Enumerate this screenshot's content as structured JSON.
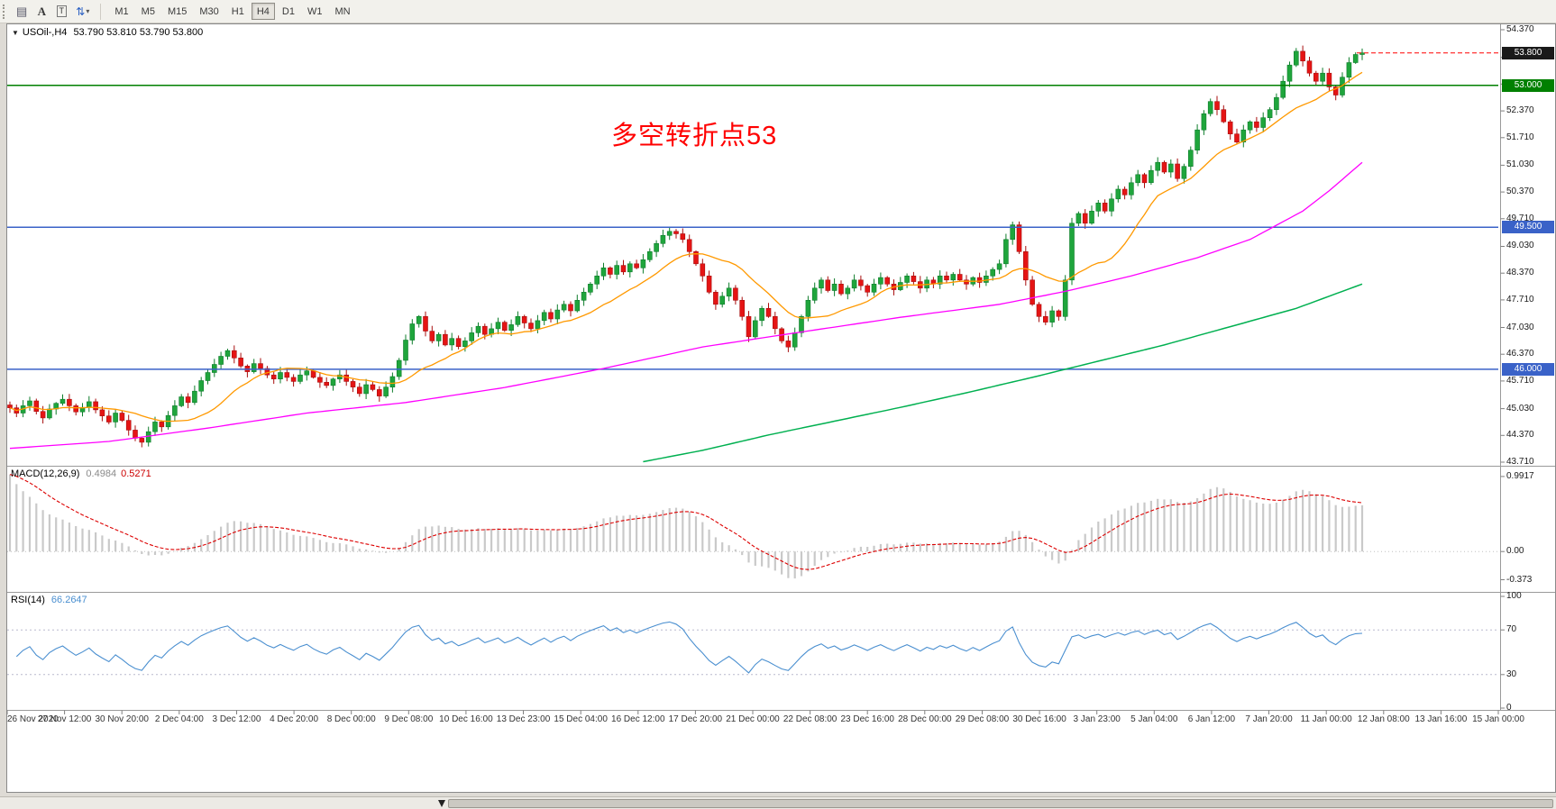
{
  "toolbar": {
    "tools": {
      "grid_glyph": "▤",
      "a_label": "A",
      "t_label": "T",
      "arrows_glyph": "⇅",
      "caret": "▾"
    },
    "timeframes": [
      {
        "label": "M1",
        "active": false
      },
      {
        "label": "M5",
        "active": false
      },
      {
        "label": "M15",
        "active": false
      },
      {
        "label": "M30",
        "active": false
      },
      {
        "label": "H1",
        "active": false
      },
      {
        "label": "H4",
        "active": true
      },
      {
        "label": "D1",
        "active": false
      },
      {
        "label": "W1",
        "active": false
      },
      {
        "label": "MN",
        "active": false
      }
    ]
  },
  "chart": {
    "collapse_icon": "▼",
    "symbol": "USOil-,H4",
    "ohlc_text": "53.790 53.810 53.790 53.800",
    "annotation": {
      "text": "多空转折点53",
      "color": "#ff0000"
    },
    "hlines": [
      {
        "price": 53.0,
        "color": "#008000"
      },
      {
        "price": 49.5,
        "color": "#3a62c8"
      },
      {
        "price": 46.0,
        "color": "#3a62c8"
      }
    ],
    "bid_line": {
      "price": 53.8,
      "color": "#ff0000"
    },
    "price_axis": {
      "ticks": [
        "54.370",
        "53.690",
        "53.030",
        "52.370",
        "51.710",
        "51.030",
        "50.370",
        "49.710",
        "49.030",
        "48.370",
        "47.710",
        "47.030",
        "46.370",
        "45.710",
        "45.030",
        "44.370",
        "43.710"
      ],
      "boxes": [
        {
          "label": "53.800",
          "price": 53.8,
          "bg": "#1a1a1a",
          "fg": "#ffffff"
        },
        {
          "label": "53.000",
          "price": 53.0,
          "bg": "#008000",
          "fg": "#ffffff"
        },
        {
          "label": "49.500",
          "price": 49.5,
          "bg": "#3a62c8",
          "fg": "#ffffff"
        },
        {
          "label": "46.000",
          "price": 46.0,
          "bg": "#3a62c8",
          "fg": "#ffffff"
        }
      ]
    }
  },
  "macd_panel": {
    "name": "MACD(12,26,9)",
    "value_main": "0.4984",
    "value_signal": "0.5271",
    "axis": [
      {
        "label": "0.9917",
        "value": 0.9917
      },
      {
        "label": "0.00",
        "value": 0
      },
      {
        "label": "-0.373",
        "value": -0.373
      }
    ]
  },
  "rsi_panel": {
    "name": "RSI(14)",
    "value": "66.2647",
    "axis": [
      {
        "label": "100",
        "value": 100
      },
      {
        "label": "70",
        "value": 70
      },
      {
        "label": "30",
        "value": 30
      },
      {
        "label": "0",
        "value": 0
      }
    ],
    "levels": [
      70,
      30
    ]
  },
  "time_axis": {
    "labels": [
      "26 Nov 2020",
      "27 Nov 12:00",
      "30 Nov 20:00",
      "2 Dec 04:00",
      "3 Dec 12:00",
      "4 Dec 20:00",
      "8 Dec 00:00",
      "9 Dec 08:00",
      "10 Dec 16:00",
      "13 Dec 23:00",
      "15 Dec 04:00",
      "16 Dec 12:00",
      "17 Dec 20:00",
      "21 Dec 00:00",
      "22 Dec 08:00",
      "23 Dec 16:00",
      "28 Dec 00:00",
      "29 Dec 08:00",
      "30 Dec 16:00",
      "3 Jan 23:00",
      "5 Jan 04:00",
      "6 Jan 12:00",
      "7 Jan 20:00",
      "11 Jan 00:00",
      "12 Jan 08:00",
      "13 Jan 16:00",
      "15 Jan 00:00"
    ]
  },
  "chart_data": {
    "type": "candlestick",
    "symbol": "USOil-",
    "period": "H4",
    "current_bar": {
      "open": 53.79,
      "high": 53.81,
      "low": 53.79,
      "close": 53.8
    },
    "price_range": [
      43.71,
      54.37
    ],
    "closes": [
      45.05,
      44.92,
      45.1,
      45.22,
      44.96,
      44.8,
      45.02,
      45.16,
      45.26,
      45.1,
      44.95,
      45.06,
      45.2,
      45.0,
      44.85,
      44.7,
      44.92,
      44.74,
      44.5,
      44.3,
      44.2,
      44.46,
      44.7,
      44.58,
      44.86,
      45.1,
      45.32,
      45.18,
      45.46,
      45.72,
      45.92,
      46.12,
      46.32,
      46.46,
      46.28,
      46.08,
      45.94,
      46.14,
      46.02,
      45.86,
      45.76,
      45.92,
      45.8,
      45.7,
      45.86,
      45.96,
      45.8,
      45.68,
      45.6,
      45.76,
      45.86,
      45.7,
      45.56,
      45.4,
      45.62,
      45.5,
      45.34,
      45.56,
      45.82,
      46.22,
      46.72,
      47.12,
      47.3,
      46.94,
      46.7,
      46.86,
      46.6,
      46.76,
      46.56,
      46.7,
      46.9,
      47.06,
      46.86,
      47.0,
      47.16,
      46.96,
      47.1,
      47.3,
      47.14,
      47.0,
      47.2,
      47.4,
      47.24,
      47.46,
      47.6,
      47.44,
      47.7,
      47.9,
      48.1,
      48.3,
      48.5,
      48.34,
      48.56,
      48.4,
      48.6,
      48.5,
      48.7,
      48.9,
      49.1,
      49.3,
      49.4,
      49.34,
      49.2,
      48.9,
      48.6,
      48.3,
      47.9,
      47.6,
      47.8,
      48.0,
      47.7,
      47.3,
      46.8,
      47.2,
      47.5,
      47.3,
      47.0,
      46.7,
      46.55,
      46.9,
      47.3,
      47.7,
      48.0,
      48.2,
      47.94,
      48.1,
      47.86,
      48.0,
      48.2,
      48.06,
      47.9,
      48.1,
      48.26,
      48.1,
      47.96,
      48.14,
      48.3,
      48.16,
      48.0,
      48.2,
      48.1,
      48.3,
      48.2,
      48.34,
      48.2,
      48.1,
      48.26,
      48.14,
      48.3,
      48.46,
      48.6,
      49.2,
      49.56,
      48.9,
      48.2,
      47.6,
      47.3,
      47.16,
      47.44,
      47.3,
      48.2,
      49.6,
      49.84,
      49.6,
      49.9,
      50.1,
      49.9,
      50.2,
      50.44,
      50.3,
      50.6,
      50.8,
      50.6,
      50.9,
      51.1,
      50.86,
      51.06,
      50.7,
      51.0,
      51.4,
      51.9,
      52.3,
      52.6,
      52.4,
      52.1,
      51.8,
      51.6,
      51.9,
      52.1,
      51.96,
      52.2,
      52.4,
      52.7,
      53.1,
      53.5,
      53.84,
      53.6,
      53.3,
      53.1,
      53.3,
      52.96,
      52.76,
      53.2,
      53.56,
      53.76,
      53.8
    ],
    "colors": {
      "up": "#1fa53c",
      "down": "#e51414",
      "up_stroke": "#0e7d2b",
      "down_stroke": "#a80f0f",
      "ma_fast": "#ff9900",
      "ma_mid": "#ff00ff",
      "ma_slow": "#00b050",
      "macd_hist": "#c9c9c9",
      "macd_signal": "#dd0000",
      "rsi": "#4a8fd0"
    },
    "ma": {
      "orange_period": 14,
      "magenta_points": [
        [
          0,
          44.05
        ],
        [
          15,
          44.22
        ],
        [
          30,
          44.55
        ],
        [
          45,
          44.92
        ],
        [
          60,
          45.18
        ],
        [
          75,
          45.55
        ],
        [
          90,
          46.02
        ],
        [
          105,
          46.55
        ],
        [
          120,
          46.92
        ],
        [
          135,
          47.28
        ],
        [
          150,
          47.6
        ],
        [
          160,
          47.92
        ],
        [
          170,
          48.3
        ],
        [
          180,
          48.75
        ],
        [
          188,
          49.2
        ],
        [
          196,
          49.9
        ],
        [
          200,
          50.4
        ],
        [
          205,
          51.1
        ]
      ],
      "green_points": [
        [
          96,
          43.72
        ],
        [
          105,
          44.0
        ],
        [
          115,
          44.38
        ],
        [
          125,
          44.72
        ],
        [
          135,
          45.06
        ],
        [
          145,
          45.42
        ],
        [
          155,
          45.8
        ],
        [
          165,
          46.2
        ],
        [
          175,
          46.6
        ],
        [
          185,
          47.05
        ],
        [
          195,
          47.5
        ],
        [
          200,
          47.8
        ],
        [
          205,
          48.1
        ]
      ]
    },
    "macd": {
      "fast": 12,
      "slow": 26,
      "signal": 9,
      "range": [
        -0.45,
        1.05
      ],
      "value": 0.4984,
      "signal_value": 0.5271
    },
    "rsi": {
      "period": 14,
      "value": 66.2647
    }
  }
}
